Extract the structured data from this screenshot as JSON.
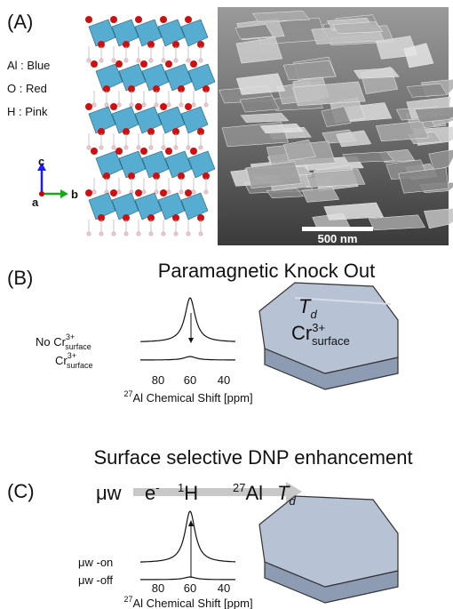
{
  "panel_a": {
    "label": "(A)",
    "legend": [
      "Al : Blue",
      "O : Red",
      "H : Pink"
    ],
    "axes": [
      "c",
      "a",
      "b"
    ],
    "scale_bar": "500 nm"
  },
  "panel_b": {
    "label": "(B)",
    "title": "Paramagnetic Knock Out",
    "spectrum_labels": [
      {
        "prefix": "No ",
        "base": "Cr",
        "sup": "3+",
        "sub": "surface"
      },
      {
        "base": "Cr",
        "sup": "3+",
        "sub": "surface"
      }
    ],
    "ticks": [
      "80",
      "60",
      "40"
    ],
    "axis_label": {
      "sup": "27",
      "text": "Al Chemical Shift [ppm]"
    },
    "particle_labels": {
      "td": {
        "base": "T",
        "sub": "d"
      },
      "cr": {
        "base": "Cr",
        "sup": "3+",
        "sub": "surface"
      }
    }
  },
  "panel_c": {
    "label": "(C)",
    "title": "Surface selective DNP enhancement",
    "transfer": {
      "uw": "μw",
      "e": {
        "base": "e",
        "sup": "-"
      },
      "h": {
        "sup": "1",
        "base": "H"
      },
      "al": {
        "sup": "27",
        "base": "Al"
      },
      "td": {
        "base": "T",
        "sub": "d"
      }
    },
    "spectrum_labels": [
      "μw -on",
      "μw -off"
    ],
    "ticks": [
      "80",
      "60",
      "40"
    ],
    "axis_label": {
      "sup": "27",
      "text": "Al Chemical Shift [ppm]"
    }
  }
}
